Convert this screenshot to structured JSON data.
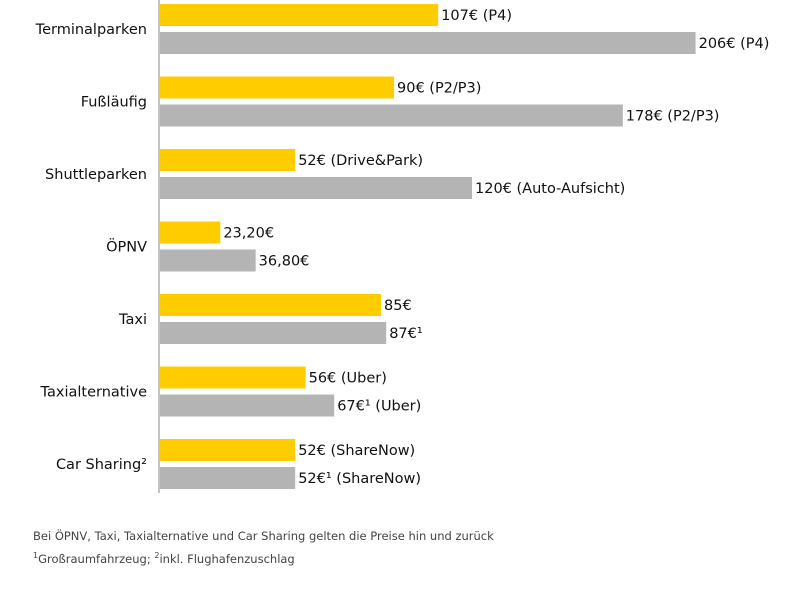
{
  "chart_data": {
    "type": "bar",
    "orientation": "horizontal",
    "colors": {
      "series_a": "#ffcc00",
      "series_b": "#b4b4b4",
      "axis": "#888888"
    },
    "categories": [
      "Terminalparken",
      "Fußläufig",
      "Shuttleparken",
      "ÖPNV",
      "Taxi",
      "Taxialternative",
      "Car Sharing²"
    ],
    "series": [
      {
        "name": "yellow",
        "values": [
          107,
          90,
          52,
          23.2,
          85,
          56,
          52
        ],
        "labels": [
          "107€ (P4)",
          "90€ (P2/P3)",
          "52€ (Drive&Park)",
          "23,20€",
          "85€",
          "56€ (Uber)",
          "52€ (ShareNow)"
        ]
      },
      {
        "name": "grey",
        "values": [
          206,
          178,
          120,
          36.8,
          87,
          67,
          52
        ],
        "labels": [
          "206€ (P4)",
          "178€ (P2/P3)",
          "120€ (Auto-Aufsicht)",
          "36,80€",
          "87€¹",
          "67€¹ (Uber)",
          "52€¹ (ShareNow)"
        ]
      }
    ],
    "xlim": [
      0,
      210
    ],
    "title": "",
    "xlabel": "",
    "ylabel": ""
  },
  "footnotes": {
    "note1": "Bei ÖPNV, Taxi, Taxialternative und Car Sharing gelten die Preise hin und zurück",
    "note2_sup1": "1",
    "note2_part1": "Großraumfahrzeug; ",
    "note2_sup2": "2",
    "note2_part2": "inkl. Flughafenzuschlag"
  }
}
